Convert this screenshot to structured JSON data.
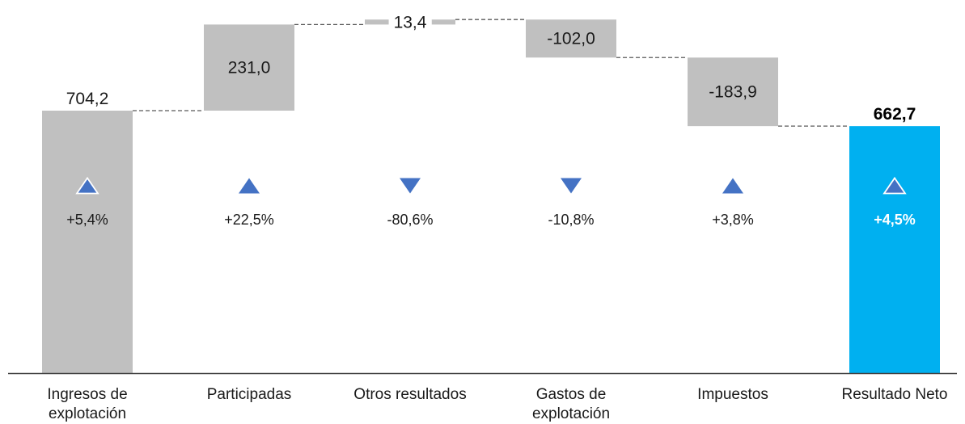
{
  "chart_data": {
    "type": "bar",
    "subtype": "waterfall",
    "categories": [
      [
        "Ingresos de",
        "explotación"
      ],
      [
        "Participadas"
      ],
      [
        "Otros resultados"
      ],
      [
        "Gastos de",
        "explotación"
      ],
      [
        "Impuestos"
      ],
      [
        "Resultado Neto"
      ]
    ],
    "values": [
      704.2,
      231.0,
      13.4,
      -102.0,
      -183.9,
      662.7
    ],
    "value_labels": [
      "704,2",
      "231,0",
      "13,4",
      "-102,0",
      "-183,9",
      "662,7"
    ],
    "kinds": [
      "total",
      "delta",
      "delta",
      "delta",
      "delta",
      "total"
    ],
    "changes": [
      "+5,4%",
      "+22,5%",
      "-80,6%",
      "-10,8%",
      "+3,8%",
      "+4,5%"
    ],
    "change_direction": [
      "up",
      "up",
      "down",
      "down",
      "up",
      "up"
    ],
    "ylim": [
      0,
      960
    ],
    "colors": {
      "bar": "#c0c0c0",
      "final_bar": "#00b0f0",
      "arrow": "#4472c4",
      "connector": "#595959",
      "axis": "#404040"
    }
  }
}
